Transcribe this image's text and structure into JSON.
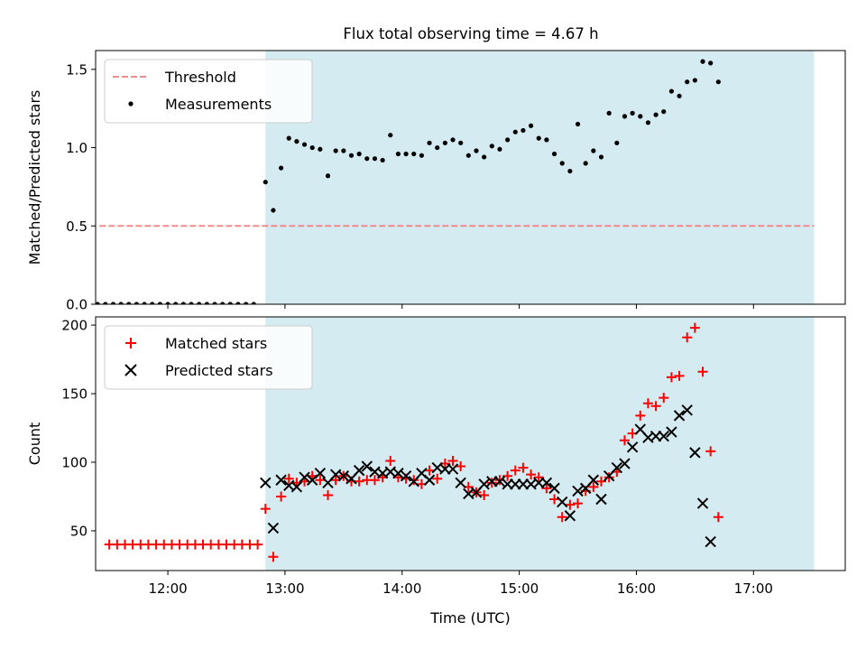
{
  "figure": {
    "title": "Flux total observing time = 4.67 h"
  },
  "chart_data": [
    {
      "type": "scatter",
      "ylabel": "Matched/Predicted stars",
      "xlabel": "",
      "xlim": [
        "11:23",
        "17:47"
      ],
      "ylim": [
        0,
        1.62
      ],
      "yticks": [
        0.0,
        0.5,
        1.0,
        1.5
      ],
      "ytick_labels": [
        "0.0",
        "0.5",
        "1.0",
        "1.5"
      ],
      "xticks": [
        "12:00",
        "13:00",
        "14:00",
        "15:00",
        "16:00",
        "17:00"
      ],
      "shaded_interval": {
        "start": "12:50",
        "end": "17:31",
        "color": "#d3ebf1"
      },
      "legend": {
        "placement": "top-left",
        "entries": [
          "Threshold",
          "Measurements"
        ]
      },
      "threshold": {
        "name": "Threshold",
        "value": 0.5,
        "x_start": "11:25",
        "x_end": "17:31",
        "color": "#f08080",
        "style": "dashed"
      },
      "series": [
        {
          "name": "Measurements",
          "marker": "dot",
          "color": "#000000",
          "points": [
            [
              "11:24",
              0
            ],
            [
              "11:28",
              0
            ],
            [
              "11:32",
              0
            ],
            [
              "11:36",
              0
            ],
            [
              "11:40",
              0
            ],
            [
              "11:44",
              0
            ],
            [
              "11:48",
              0
            ],
            [
              "11:52",
              0
            ],
            [
              "11:56",
              0
            ],
            [
              "12:00",
              0
            ],
            [
              "12:04",
              0
            ],
            [
              "12:08",
              0
            ],
            [
              "12:12",
              0
            ],
            [
              "12:16",
              0
            ],
            [
              "12:20",
              0
            ],
            [
              "12:24",
              0
            ],
            [
              "12:28",
              0
            ],
            [
              "12:32",
              0
            ],
            [
              "12:36",
              0
            ],
            [
              "12:40",
              0
            ],
            [
              "12:44",
              0
            ],
            [
              "12:50",
              0.78
            ],
            [
              "12:54",
              0.6
            ],
            [
              "12:58",
              0.87
            ],
            [
              "13:02",
              1.06
            ],
            [
              "13:06",
              1.04
            ],
            [
              "13:10",
              1.02
            ],
            [
              "13:14",
              1.0
            ],
            [
              "13:18",
              0.99
            ],
            [
              "13:22",
              0.82
            ],
            [
              "13:26",
              0.98
            ],
            [
              "13:30",
              0.98
            ],
            [
              "13:34",
              0.95
            ],
            [
              "13:38",
              0.96
            ],
            [
              "13:42",
              0.93
            ],
            [
              "13:46",
              0.93
            ],
            [
              "13:50",
              0.92
            ],
            [
              "13:54",
              1.08
            ],
            [
              "13:58",
              0.96
            ],
            [
              "14:02",
              0.96
            ],
            [
              "14:06",
              0.96
            ],
            [
              "14:10",
              0.95
            ],
            [
              "14:14",
              1.03
            ],
            [
              "14:18",
              1.0
            ],
            [
              "14:22",
              1.03
            ],
            [
              "14:26",
              1.05
            ],
            [
              "14:30",
              1.03
            ],
            [
              "14:34",
              0.95
            ],
            [
              "14:38",
              0.98
            ],
            [
              "14:42",
              0.94
            ],
            [
              "14:46",
              1.01
            ],
            [
              "14:50",
              0.99
            ],
            [
              "14:54",
              1.05
            ],
            [
              "14:58",
              1.1
            ],
            [
              "15:02",
              1.11
            ],
            [
              "15:06",
              1.14
            ],
            [
              "15:10",
              1.06
            ],
            [
              "15:14",
              1.05
            ],
            [
              "15:18",
              0.96
            ],
            [
              "15:22",
              0.9
            ],
            [
              "15:26",
              0.85
            ],
            [
              "15:30",
              1.15
            ],
            [
              "15:34",
              0.9
            ],
            [
              "15:38",
              0.98
            ],
            [
              "15:42",
              0.94
            ],
            [
              "15:46",
              1.22
            ],
            [
              "15:50",
              1.03
            ],
            [
              "15:54",
              1.2
            ],
            [
              "15:58",
              1.22
            ],
            [
              "16:02",
              1.2
            ],
            [
              "16:06",
              1.16
            ],
            [
              "16:10",
              1.21
            ],
            [
              "16:14",
              1.23
            ],
            [
              "16:18",
              1.36
            ],
            [
              "16:22",
              1.33
            ],
            [
              "16:26",
              1.42
            ],
            [
              "16:30",
              1.43
            ],
            [
              "16:34",
              1.55
            ],
            [
              "16:38",
              1.54
            ],
            [
              "16:42",
              1.42
            ]
          ]
        }
      ]
    },
    {
      "type": "scatter",
      "ylabel": "Count",
      "xlabel": "Time (UTC)",
      "xlim": [
        "11:23",
        "17:47"
      ],
      "ylim": [
        21,
        206
      ],
      "yticks": [
        50,
        100,
        150,
        200
      ],
      "ytick_labels": [
        "50",
        "100",
        "150",
        "200"
      ],
      "xticks": [
        "12:00",
        "13:00",
        "14:00",
        "15:00",
        "16:00",
        "17:00"
      ],
      "shaded_interval": {
        "start": "12:50",
        "end": "17:31",
        "color": "#d3ebf1"
      },
      "legend": {
        "placement": "top-left",
        "entries": [
          "Matched stars",
          "Predicted stars"
        ]
      },
      "series": [
        {
          "name": "Matched stars",
          "marker": "plus",
          "color": "#ff0000",
          "points": [
            [
              "11:30",
              40
            ],
            [
              "11:34",
              40
            ],
            [
              "11:38",
              40
            ],
            [
              "11:42",
              40
            ],
            [
              "11:46",
              40
            ],
            [
              "11:50",
              40
            ],
            [
              "11:54",
              40
            ],
            [
              "11:58",
              40
            ],
            [
              "12:02",
              40
            ],
            [
              "12:06",
              40
            ],
            [
              "12:10",
              40
            ],
            [
              "12:14",
              40
            ],
            [
              "12:18",
              40
            ],
            [
              "12:22",
              40
            ],
            [
              "12:26",
              40
            ],
            [
              "12:30",
              40
            ],
            [
              "12:34",
              40
            ],
            [
              "12:38",
              40
            ],
            [
              "12:42",
              40
            ],
            [
              "12:46",
              40
            ],
            [
              "12:50",
              66
            ],
            [
              "12:54",
              31
            ],
            [
              "12:58",
              75
            ],
            [
              "13:02",
              88
            ],
            [
              "13:06",
              85
            ],
            [
              "13:10",
              86
            ],
            [
              "13:14",
              90
            ],
            [
              "13:18",
              87
            ],
            [
              "13:22",
              76
            ],
            [
              "13:26",
              87
            ],
            [
              "13:30",
              90
            ],
            [
              "13:34",
              86
            ],
            [
              "13:38",
              86
            ],
            [
              "13:42",
              87
            ],
            [
              "13:46",
              87
            ],
            [
              "13:50",
              89
            ],
            [
              "13:54",
              101
            ],
            [
              "13:58",
              89
            ],
            [
              "14:02",
              88
            ],
            [
              "14:06",
              87
            ],
            [
              "14:10",
              84
            ],
            [
              "14:14",
              94
            ],
            [
              "14:18",
              88
            ],
            [
              "14:22",
              99
            ],
            [
              "14:26",
              101
            ],
            [
              "14:30",
              97
            ],
            [
              "14:34",
              82
            ],
            [
              "14:38",
              78
            ],
            [
              "14:42",
              76
            ],
            [
              "14:46",
              85
            ],
            [
              "14:50",
              87
            ],
            [
              "14:54",
              90
            ],
            [
              "14:58",
              94
            ],
            [
              "15:02",
              96
            ],
            [
              "15:06",
              91
            ],
            [
              "15:10",
              89
            ],
            [
              "15:14",
              81
            ],
            [
              "15:18",
              73
            ],
            [
              "15:22",
              60
            ],
            [
              "15:26",
              69
            ],
            [
              "15:30",
              70
            ],
            [
              "15:34",
              79
            ],
            [
              "15:38",
              82
            ],
            [
              "15:42",
              86
            ],
            [
              "15:46",
              89
            ],
            [
              "15:50",
              93
            ],
            [
              "15:54",
              116
            ],
            [
              "15:58",
              121
            ],
            [
              "16:02",
              134
            ],
            [
              "16:06",
              143
            ],
            [
              "16:10",
              141
            ],
            [
              "16:14",
              147
            ],
            [
              "16:18",
              162
            ],
            [
              "16:22",
              163
            ],
            [
              "16:26",
              191
            ],
            [
              "16:30",
              198
            ],
            [
              "16:34",
              166
            ],
            [
              "16:38",
              108
            ],
            [
              "16:42",
              60
            ]
          ]
        },
        {
          "name": "Predicted stars",
          "marker": "x",
          "color": "#000000",
          "points": [
            [
              "12:50",
              85
            ],
            [
              "12:54",
              52
            ],
            [
              "12:58",
              87
            ],
            [
              "13:02",
              83
            ],
            [
              "13:06",
              82
            ],
            [
              "13:10",
              89
            ],
            [
              "13:14",
              87
            ],
            [
              "13:18",
              92
            ],
            [
              "13:22",
              85
            ],
            [
              "13:26",
              91
            ],
            [
              "13:30",
              90
            ],
            [
              "13:34",
              88
            ],
            [
              "13:38",
              94
            ],
            [
              "13:42",
              97
            ],
            [
              "13:46",
              93
            ],
            [
              "13:50",
              92
            ],
            [
              "13:54",
              93
            ],
            [
              "13:58",
              92
            ],
            [
              "14:02",
              90
            ],
            [
              "14:06",
              86
            ],
            [
              "14:10",
              92
            ],
            [
              "14:14",
              87
            ],
            [
              "14:18",
              96
            ],
            [
              "14:22",
              95
            ],
            [
              "14:26",
              95
            ],
            [
              "14:30",
              85
            ],
            [
              "14:34",
              77
            ],
            [
              "14:38",
              78
            ],
            [
              "14:42",
              84
            ],
            [
              "14:46",
              86
            ],
            [
              "14:50",
              86
            ],
            [
              "14:54",
              84
            ],
            [
              "14:58",
              84
            ],
            [
              "15:02",
              84
            ],
            [
              "15:06",
              84
            ],
            [
              "15:10",
              85
            ],
            [
              "15:14",
              85
            ],
            [
              "15:18",
              81
            ],
            [
              "15:22",
              71
            ],
            [
              "15:26",
              61
            ],
            [
              "15:30",
              79
            ],
            [
              "15:34",
              81
            ],
            [
              "15:38",
              87
            ],
            [
              "15:42",
              73
            ],
            [
              "15:46",
              90
            ],
            [
              "15:50",
              96
            ],
            [
              "15:54",
              99
            ],
            [
              "15:58",
              111
            ],
            [
              "16:02",
              124
            ],
            [
              "16:06",
              118
            ],
            [
              "16:10",
              119
            ],
            [
              "16:14",
              119
            ],
            [
              "16:18",
              122
            ],
            [
              "16:22",
              134
            ],
            [
              "16:26",
              138
            ],
            [
              "16:30",
              107
            ],
            [
              "16:34",
              70
            ],
            [
              "16:38",
              42
            ]
          ]
        }
      ]
    }
  ]
}
